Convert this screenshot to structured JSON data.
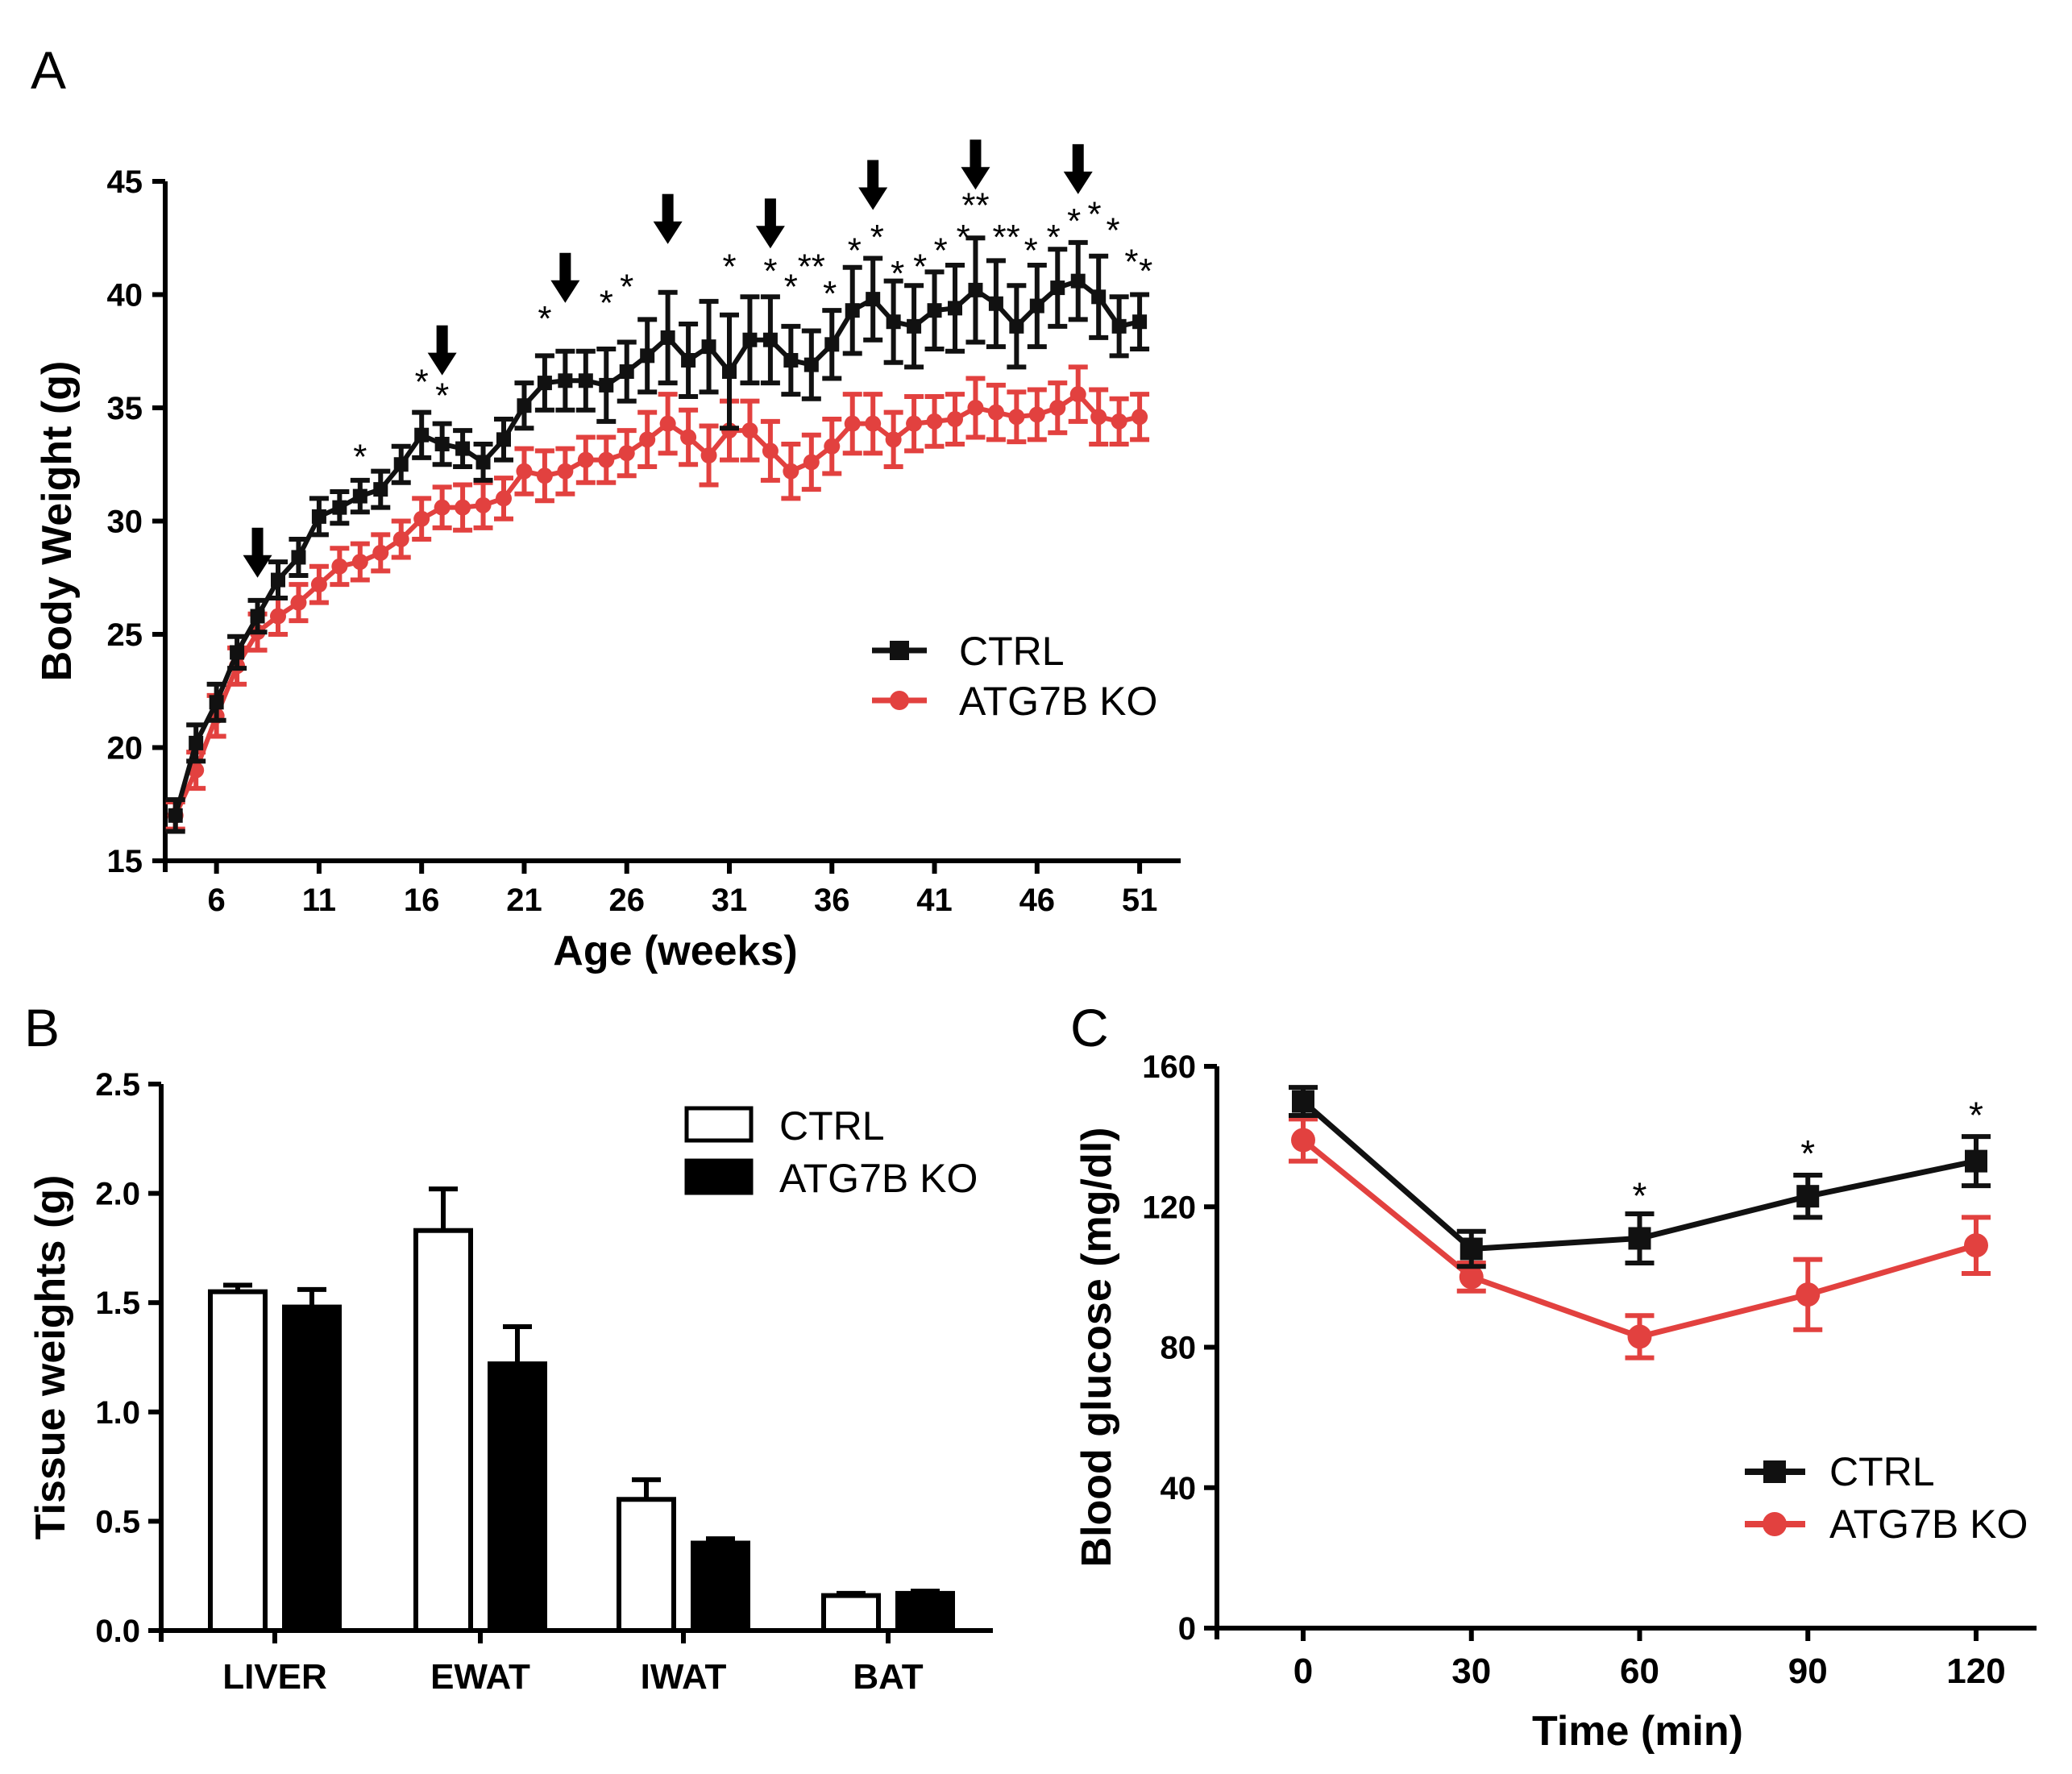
{
  "colors": {
    "ctrl": "#111111",
    "ko": "#e2413f"
  },
  "chart_data": [
    {
      "panel_label": "A",
      "type": "line",
      "title": "",
      "xlabel": "Age (weeks)",
      "ylabel": "Body Weight (g)",
      "xlim": [
        3.5,
        53
      ],
      "ylim": [
        15,
        45
      ],
      "xticks": [
        6,
        11,
        16,
        21,
        26,
        31,
        36,
        41,
        46,
        51
      ],
      "yticks": [
        15,
        20,
        25,
        30,
        35,
        40,
        45
      ],
      "x": [
        4,
        5,
        6,
        7,
        8,
        9,
        10,
        11,
        12,
        13,
        14,
        15,
        16,
        17,
        18,
        19,
        20,
        21,
        22,
        23,
        24,
        25,
        26,
        27,
        28,
        29,
        30,
        31,
        32,
        33,
        34,
        35,
        36,
        37,
        38,
        39,
        40,
        41,
        42,
        43,
        44,
        45,
        46,
        47,
        48,
        49,
        50,
        51
      ],
      "series": [
        {
          "name": "CTRL",
          "values": [
            17.0,
            20.2,
            22.0,
            24.2,
            25.8,
            27.4,
            28.4,
            30.2,
            30.6,
            31.1,
            31.4,
            32.5,
            33.8,
            33.4,
            33.2,
            32.6,
            33.6,
            35.1,
            36.1,
            36.2,
            36.2,
            36.0,
            36.6,
            37.3,
            38.1,
            37.1,
            37.7,
            36.6,
            38.0,
            38.0,
            37.1,
            36.9,
            37.8,
            39.3,
            39.8,
            38.8,
            38.6,
            39.3,
            39.4,
            40.2,
            39.6,
            38.6,
            39.5,
            40.3,
            40.6,
            39.9,
            38.6,
            38.8
          ],
          "errors": [
            0.7,
            0.8,
            0.8,
            0.7,
            0.7,
            0.8,
            0.8,
            0.8,
            0.7,
            0.7,
            0.8,
            0.8,
            1.0,
            0.9,
            0.8,
            0.8,
            0.9,
            1.0,
            1.2,
            1.3,
            1.3,
            1.6,
            1.3,
            1.6,
            2.0,
            1.6,
            2.0,
            2.5,
            1.9,
            1.9,
            1.5,
            1.5,
            1.5,
            1.9,
            1.8,
            1.8,
            1.8,
            1.7,
            1.9,
            2.3,
            1.9,
            1.8,
            1.8,
            1.7,
            1.7,
            1.8,
            1.3,
            1.2
          ]
        },
        {
          "name": "ATG7B KO",
          "values": [
            17.0,
            19.0,
            21.4,
            23.6,
            25.1,
            25.8,
            26.4,
            27.2,
            28.0,
            28.2,
            28.6,
            29.2,
            30.1,
            30.6,
            30.6,
            30.7,
            31.0,
            32.2,
            32.0,
            32.2,
            32.7,
            32.7,
            33.0,
            33.6,
            34.3,
            33.7,
            32.9,
            34.0,
            34.0,
            33.1,
            32.2,
            32.6,
            33.3,
            34.3,
            34.3,
            33.6,
            34.3,
            34.4,
            34.5,
            35.0,
            34.8,
            34.6,
            34.7,
            35.0,
            35.6,
            34.6,
            34.4,
            34.6
          ],
          "errors": [
            0.6,
            0.8,
            0.9,
            0.8,
            0.8,
            0.8,
            0.8,
            0.8,
            0.8,
            0.8,
            0.8,
            0.8,
            0.9,
            0.9,
            1.0,
            1.0,
            0.9,
            1.0,
            1.1,
            1.0,
            1.0,
            1.0,
            1.0,
            1.2,
            1.3,
            1.2,
            1.3,
            1.3,
            1.3,
            1.3,
            1.2,
            1.2,
            1.2,
            1.3,
            1.3,
            1.2,
            1.2,
            1.1,
            1.1,
            1.3,
            1.2,
            1.1,
            1.1,
            1.1,
            1.2,
            1.2,
            1.0,
            1.0
          ]
        }
      ],
      "annotations": [
        {
          "text": "*",
          "x": 13,
          "y": 33.1
        },
        {
          "text": "*",
          "x": 16,
          "y": 36.4
        },
        {
          "text": "*",
          "x": 17,
          "y": 35.8
        },
        {
          "text": "*",
          "x": 22,
          "y": 39.2
        },
        {
          "text": "*",
          "x": 25,
          "y": 39.9
        },
        {
          "text": "*",
          "x": 26,
          "y": 40.6
        },
        {
          "text": "*",
          "x": 31,
          "y": 41.5
        },
        {
          "text": "*",
          "x": 33,
          "y": 41.3
        },
        {
          "text": "*",
          "x": 34,
          "y": 40.6
        },
        {
          "text": "**",
          "x": 35,
          "y": 41.5
        },
        {
          "text": "*",
          "x": 35.9,
          "y": 40.3
        },
        {
          "text": "*",
          "x": 37.1,
          "y": 42.2
        },
        {
          "text": "*",
          "x": 38.2,
          "y": 42.8
        },
        {
          "text": "*",
          "x": 39.2,
          "y": 41.2
        },
        {
          "text": "*",
          "x": 40.3,
          "y": 41.5
        },
        {
          "text": "*",
          "x": 41.3,
          "y": 42.2
        },
        {
          "text": "*",
          "x": 42.4,
          "y": 42.8
        },
        {
          "text": "**",
          "x": 43.0,
          "y": 44.2
        },
        {
          "text": "**",
          "x": 44.5,
          "y": 42.8
        },
        {
          "text": "*",
          "x": 45.7,
          "y": 42.2
        },
        {
          "text": "*",
          "x": 46.8,
          "y": 42.8
        },
        {
          "text": "*",
          "x": 47.8,
          "y": 43.5
        },
        {
          "text": "*",
          "x": 48.8,
          "y": 43.8
        },
        {
          "text": "*",
          "x": 49.7,
          "y": 43.1
        },
        {
          "text": "*",
          "x": 50.6,
          "y": 41.7
        },
        {
          "text": "*",
          "x": 51.3,
          "y": 41.3
        }
      ],
      "arrows_at_x": [
        8,
        17,
        23,
        28,
        33,
        38,
        43,
        48
      ],
      "legend": {
        "position": "middle-right",
        "entries": [
          "CTRL",
          "ATG7B KO"
        ]
      }
    },
    {
      "panel_label": "B",
      "type": "bar",
      "title": "",
      "xlabel": "",
      "ylabel": "Tissue weights (g)",
      "ylim": [
        0,
        2.5
      ],
      "yticks": [
        "0.0",
        "0.5",
        "1.0",
        "1.5",
        "2.0",
        "2.5"
      ],
      "categories": [
        "LIVER",
        "EWAT",
        "IWAT",
        "BAT"
      ],
      "series": [
        {
          "name": "CTRL",
          "fill": "white",
          "values": [
            1.55,
            1.83,
            0.6,
            0.16
          ],
          "errors": [
            0.03,
            0.19,
            0.09,
            0.01
          ]
        },
        {
          "name": "ATG7B KO",
          "fill": "black",
          "values": [
            1.48,
            1.22,
            0.4,
            0.17
          ],
          "errors": [
            0.08,
            0.17,
            0.02,
            0.01
          ]
        }
      ],
      "legend": {
        "position": "top-right",
        "entries": [
          "CTRL",
          "ATG7B KO"
        ]
      }
    },
    {
      "panel_label": "C",
      "type": "line",
      "title": "",
      "xlabel": "Time (min)",
      "ylabel": "Blood glucose (mg/dl)",
      "xlim": [
        -15,
        135
      ],
      "ylim": [
        0,
        160
      ],
      "xticks": [
        0,
        30,
        60,
        90,
        120
      ],
      "yticks": [
        0,
        40,
        80,
        120,
        160
      ],
      "x": [
        0,
        30,
        60,
        90,
        120
      ],
      "series": [
        {
          "name": "CTRL",
          "marker": "square",
          "values": [
            150,
            108,
            111,
            123,
            133
          ],
          "errors": [
            4,
            5,
            7,
            6,
            7
          ]
        },
        {
          "name": "ATG7B KO",
          "marker": "circle",
          "values": [
            139,
            100,
            83,
            95,
            109
          ],
          "errors": [
            6,
            4,
            6,
            10,
            8
          ]
        }
      ],
      "annotations": [
        {
          "text": "*",
          "x": 60,
          "y": 125
        },
        {
          "text": "*",
          "x": 90,
          "y": 137
        },
        {
          "text": "*",
          "x": 120,
          "y": 148
        }
      ],
      "legend": {
        "position": "bottom-right",
        "entries": [
          "CTRL",
          "ATG7B KO"
        ]
      }
    }
  ]
}
